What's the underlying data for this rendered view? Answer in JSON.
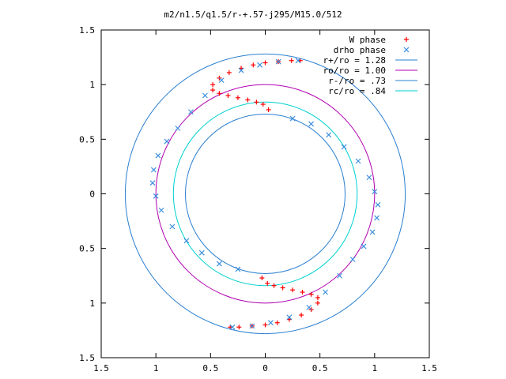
{
  "chart_data": {
    "type": "scatter",
    "title": "m2/n1.5/q1.5/r-+.57-j295/M15.0/512",
    "xlabel": "",
    "ylabel": "",
    "xlim": [
      -1.5,
      1.5
    ],
    "ylim": [
      -1.5,
      1.5
    ],
    "x_ticks": [
      -1.5,
      -1,
      -0.5,
      0,
      0.5,
      1,
      1.5
    ],
    "y_ticks": [
      -1.5,
      -1,
      -0.5,
      0,
      0.5,
      1,
      1.5
    ],
    "x_tick_labels": [
      "1.5",
      "1",
      "0.5",
      "0",
      "0.5",
      "1",
      "1.5"
    ],
    "y_tick_labels": [
      "1.5",
      "1",
      "0.5",
      "0",
      "0.5",
      "1",
      "1.5"
    ],
    "grid": false,
    "legend_position": "top-right",
    "colors": {
      "w_phase": "#ff0000",
      "drho_phase": "#3b8fe0",
      "r_plus": "#2a7fd0",
      "r_o": "#b000b0",
      "r_minus": "#2a7fd0",
      "r_c": "#00d0d0"
    },
    "series": [
      {
        "name": "W phase",
        "marker": "plus",
        "points": [
          [
            0.03,
            0.77
          ],
          [
            -0.02,
            0.82
          ],
          [
            -0.08,
            0.84
          ],
          [
            -0.16,
            0.86
          ],
          [
            -0.25,
            0.88
          ],
          [
            -0.34,
            0.9
          ],
          [
            -0.42,
            0.92
          ],
          [
            -0.48,
            0.95
          ],
          [
            -0.48,
            1.0
          ],
          [
            -0.42,
            1.06
          ],
          [
            -0.33,
            1.11
          ],
          [
            -0.22,
            1.15
          ],
          [
            -0.11,
            1.18
          ],
          [
            0.0,
            1.2
          ],
          [
            0.12,
            1.21
          ],
          [
            0.24,
            1.22
          ],
          [
            0.32,
            1.22
          ],
          [
            -0.03,
            -0.77
          ],
          [
            0.02,
            -0.82
          ],
          [
            0.08,
            -0.84
          ],
          [
            0.16,
            -0.86
          ],
          [
            0.25,
            -0.88
          ],
          [
            0.34,
            -0.9
          ],
          [
            0.42,
            -0.92
          ],
          [
            0.48,
            -0.95
          ],
          [
            0.48,
            -1.0
          ],
          [
            0.42,
            -1.06
          ],
          [
            0.33,
            -1.11
          ],
          [
            0.22,
            -1.15
          ],
          [
            0.11,
            -1.18
          ],
          [
            0.0,
            -1.2
          ],
          [
            -0.12,
            -1.21
          ],
          [
            -0.24,
            -1.22
          ],
          [
            -0.32,
            -1.22
          ]
        ]
      },
      {
        "name": "drho phase",
        "marker": "cross",
        "points": [
          [
            0.25,
            0.69
          ],
          [
            0.42,
            0.64
          ],
          [
            0.58,
            0.54
          ],
          [
            0.72,
            0.43
          ],
          [
            0.85,
            0.3
          ],
          [
            0.95,
            0.15
          ],
          [
            1.0,
            0.02
          ],
          [
            1.03,
            -0.1
          ],
          [
            1.02,
            -0.22
          ],
          [
            0.98,
            -0.35
          ],
          [
            0.9,
            -0.48
          ],
          [
            0.8,
            -0.6
          ],
          [
            0.68,
            -0.75
          ],
          [
            0.55,
            -0.9
          ],
          [
            0.4,
            -1.04
          ],
          [
            0.22,
            -1.13
          ],
          [
            0.05,
            -1.18
          ],
          [
            -0.12,
            -1.21
          ],
          [
            -0.3,
            -1.22
          ],
          [
            -0.25,
            -0.69
          ],
          [
            -0.42,
            -0.64
          ],
          [
            -0.58,
            -0.54
          ],
          [
            -0.72,
            -0.43
          ],
          [
            -0.85,
            -0.3
          ],
          [
            -0.95,
            -0.15
          ],
          [
            -1.0,
            -0.02
          ],
          [
            -1.03,
            0.1
          ],
          [
            -1.02,
            0.22
          ],
          [
            -0.98,
            0.35
          ],
          [
            -0.9,
            0.48
          ],
          [
            -0.8,
            0.6
          ],
          [
            -0.68,
            0.75
          ],
          [
            -0.55,
            0.9
          ],
          [
            -0.4,
            1.04
          ],
          [
            -0.22,
            1.13
          ],
          [
            -0.05,
            1.18
          ],
          [
            0.12,
            1.21
          ],
          [
            0.3,
            1.22
          ]
        ]
      },
      {
        "name": "r+/ro = 1.28",
        "type": "circle",
        "radius": 1.28
      },
      {
        "name": "ro/ro = 1.00",
        "type": "circle",
        "radius": 1.0
      },
      {
        "name": "r-/ro = .73",
        "type": "circle",
        "radius": 0.73
      },
      {
        "name": "rc/ro = .84",
        "type": "circle",
        "radius": 0.84
      }
    ]
  }
}
